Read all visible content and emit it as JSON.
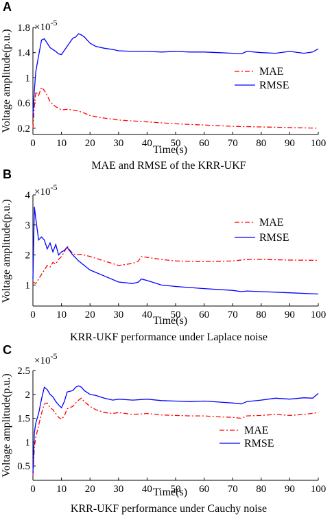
{
  "chart_data": [
    {
      "type": "line",
      "panel": "A",
      "caption": "MAE and RMSE of the KRR-UKF",
      "xlabel": "Time(s)",
      "ylabel": "Voltage amplitude(p.u.)",
      "exponent_base": "×10",
      "exponent_power": "-5",
      "xlim": [
        0,
        100
      ],
      "ylim": [
        0.1,
        1.8
      ],
      "xticks": [
        0,
        10,
        20,
        30,
        40,
        50,
        60,
        70,
        80,
        90,
        100
      ],
      "yticks": [
        0.2,
        0.6,
        1,
        1.4,
        1.8
      ],
      "ytick_labels": [
        "0.2",
        "0.6",
        "1",
        "1.4",
        "1.8"
      ],
      "legend_placement": "right",
      "series": [
        {
          "name": "MAE",
          "color": "#ff0000",
          "style": "dashdot",
          "x": [
            0,
            0.5,
            1,
            2,
            3,
            4,
            5,
            6,
            7,
            8,
            10,
            12,
            14,
            16,
            18,
            20,
            25,
            30,
            40,
            50,
            60,
            70,
            80,
            90,
            100
          ],
          "y": [
            0.2,
            0.55,
            0.78,
            0.72,
            0.85,
            0.8,
            0.72,
            0.62,
            0.58,
            0.54,
            0.49,
            0.5,
            0.49,
            0.47,
            0.44,
            0.4,
            0.36,
            0.33,
            0.3,
            0.27,
            0.25,
            0.23,
            0.22,
            0.21,
            0.2
          ]
        },
        {
          "name": "RMSE",
          "color": "#0000ff",
          "style": "solid",
          "x": [
            0,
            0.5,
            1,
            2,
            3,
            4,
            5,
            6,
            7,
            8,
            9,
            10,
            12,
            14,
            15,
            16,
            17,
            18,
            20,
            22,
            25,
            28,
            30,
            35,
            40,
            45,
            50,
            55,
            60,
            65,
            70,
            73,
            75,
            80,
            85,
            90,
            95,
            98,
            100
          ],
          "y": [
            0.4,
            0.8,
            1.1,
            1.35,
            1.6,
            1.62,
            1.55,
            1.48,
            1.45,
            1.42,
            1.38,
            1.37,
            1.5,
            1.63,
            1.65,
            1.7,
            1.68,
            1.65,
            1.55,
            1.5,
            1.47,
            1.45,
            1.43,
            1.42,
            1.42,
            1.41,
            1.42,
            1.41,
            1.41,
            1.4,
            1.39,
            1.38,
            1.42,
            1.4,
            1.39,
            1.42,
            1.39,
            1.41,
            1.46
          ]
        }
      ]
    },
    {
      "type": "line",
      "panel": "B",
      "caption": "KRR-UKF performance under Laplace noise",
      "xlabel": "Time(s)",
      "ylabel": "Voltage amplitude(p.u.)",
      "exponent_base": "×10",
      "exponent_power": "-5",
      "xlim": [
        0,
        100
      ],
      "ylim": [
        0.3,
        4
      ],
      "xticks": [
        0,
        10,
        20,
        30,
        40,
        50,
        60,
        70,
        80,
        90,
        100
      ],
      "yticks": [
        1,
        2,
        3,
        4
      ],
      "ytick_labels": [
        "1",
        "2",
        "3",
        "4"
      ],
      "legend_placement": "top-right",
      "series": [
        {
          "name": "MAE",
          "color": "#ff0000",
          "style": "dashdot",
          "x": [
            0,
            1,
            2,
            3,
            4,
            5,
            6,
            7,
            8,
            9,
            10,
            11,
            12,
            13,
            14,
            15,
            17,
            20,
            25,
            30,
            35,
            37,
            38,
            40,
            45,
            50,
            60,
            70,
            75,
            80,
            90,
            100
          ],
          "y": [
            1.1,
            1.05,
            1.2,
            1.35,
            1.5,
            1.65,
            1.6,
            1.75,
            1.7,
            1.85,
            1.95,
            2.1,
            2.3,
            2.15,
            2.05,
            2.0,
            2.02,
            1.95,
            1.8,
            1.65,
            1.72,
            1.8,
            1.95,
            1.92,
            1.85,
            1.8,
            1.78,
            1.8,
            1.85,
            1.85,
            1.83,
            1.82
          ]
        },
        {
          "name": "RMSE",
          "color": "#0000ff",
          "style": "solid",
          "x": [
            0,
            0.5,
            1,
            2,
            3,
            4,
            5,
            6,
            7,
            8,
            9,
            10,
            11,
            12,
            14,
            16,
            18,
            20,
            25,
            30,
            35,
            37,
            38,
            40,
            45,
            50,
            60,
            70,
            73,
            75,
            80,
            90,
            100
          ],
          "y": [
            1.2,
            3.6,
            3.2,
            2.5,
            2.6,
            2.5,
            2.2,
            2.4,
            2.1,
            2.35,
            2.0,
            2.1,
            2.15,
            2.25,
            2.0,
            1.8,
            1.65,
            1.5,
            1.3,
            1.1,
            1.05,
            1.1,
            1.2,
            1.15,
            1.0,
            0.95,
            0.88,
            0.82,
            0.78,
            0.8,
            0.78,
            0.74,
            0.7
          ]
        }
      ]
    },
    {
      "type": "line",
      "panel": "C",
      "caption": "KRR-UKF performance under Cauchy noise",
      "xlabel": "Time(s)",
      "ylabel": "Voltage amplitude(p.u.)",
      "exponent_base": "×10",
      "exponent_power": "-5",
      "xlim": [
        0,
        100
      ],
      "ylim": [
        0.2,
        2.5
      ],
      "xticks": [
        0,
        10,
        20,
        30,
        40,
        50,
        60,
        70,
        80,
        90,
        100
      ],
      "yticks": [
        0.5,
        1,
        1.5,
        2,
        2.5
      ],
      "ytick_labels": [
        "0.5",
        "1",
        "1.5",
        "2",
        "2.5"
      ],
      "legend_placement": "bottom-right",
      "series": [
        {
          "name": "MAE",
          "color": "#ff0000",
          "style": "dashdot",
          "x": [
            0,
            0.5,
            1,
            2,
            3,
            4,
            5,
            6,
            7,
            8,
            9,
            10,
            11,
            12,
            14,
            15,
            16,
            17,
            18,
            20,
            22,
            25,
            28,
            30,
            35,
            40,
            45,
            50,
            55,
            60,
            65,
            70,
            73,
            75,
            80,
            85,
            90,
            95,
            100
          ],
          "y": [
            0.3,
            0.9,
            1.1,
            1.35,
            1.6,
            1.8,
            1.82,
            1.72,
            1.68,
            1.6,
            1.52,
            1.48,
            1.55,
            1.7,
            1.75,
            1.82,
            1.88,
            1.92,
            1.85,
            1.75,
            1.68,
            1.62,
            1.6,
            1.62,
            1.58,
            1.6,
            1.57,
            1.56,
            1.55,
            1.55,
            1.53,
            1.52,
            1.5,
            1.55,
            1.56,
            1.58,
            1.56,
            1.58,
            1.62
          ]
        },
        {
          "name": "RMSE",
          "color": "#0000ff",
          "style": "solid",
          "x": [
            0,
            0.5,
            1,
            2,
            3,
            4,
            5,
            6,
            7,
            8,
            9,
            10,
            11,
            12,
            14,
            15,
            16,
            17,
            18,
            20,
            22,
            25,
            28,
            30,
            35,
            40,
            45,
            50,
            55,
            60,
            65,
            70,
            73,
            75,
            80,
            85,
            90,
            95,
            98,
            100
          ],
          "y": [
            0.35,
            1.2,
            1.4,
            1.6,
            1.9,
            2.15,
            2.1,
            2.0,
            1.95,
            1.85,
            1.78,
            1.72,
            1.85,
            2.05,
            2.08,
            2.15,
            2.18,
            2.15,
            2.08,
            2.0,
            1.98,
            1.92,
            1.88,
            1.9,
            1.88,
            1.9,
            1.87,
            1.86,
            1.85,
            1.86,
            1.84,
            1.82,
            1.8,
            1.85,
            1.88,
            1.92,
            1.9,
            1.93,
            1.92,
            2.02
          ]
        }
      ]
    }
  ]
}
